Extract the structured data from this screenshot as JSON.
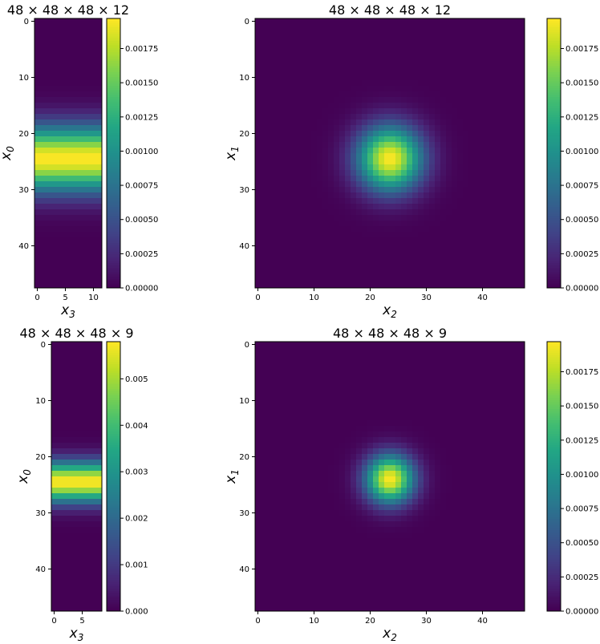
{
  "chart_data": [
    {
      "type": "heatmap",
      "title": "48 × 48 × 48 × 12",
      "xlabel": "x",
      "xlabel_sub": "3",
      "ylabel": "x",
      "ylabel_sub": "0",
      "x_ticks": [
        0,
        5,
        10
      ],
      "y_ticks": [
        0,
        10,
        20,
        30,
        40
      ],
      "xlim": [
        -0.5,
        11.5
      ],
      "ylim": [
        47.5,
        -0.5
      ],
      "grid_shape": [
        48,
        12
      ],
      "profile": "gaussian rows, uniform across columns",
      "center_row": 24.5,
      "sigma_rows": 4.0,
      "vmin": 0,
      "vmax": 0.00197,
      "colorbar_ticks": [
        "0.00000",
        "0.00025",
        "0.00050",
        "0.00075",
        "0.00100",
        "0.00125",
        "0.00150",
        "0.00175"
      ],
      "colorbar_values": [
        0,
        0.00025,
        0.0005,
        0.00075,
        0.001,
        0.00125,
        0.0015,
        0.00175
      ],
      "colormap": "viridis"
    },
    {
      "type": "heatmap",
      "title": "48 × 48 × 48 × 12",
      "xlabel": "x",
      "xlabel_sub": "2",
      "ylabel": "x",
      "ylabel_sub": "1",
      "x_ticks": [
        0,
        10,
        20,
        30,
        40
      ],
      "y_ticks": [
        0,
        10,
        20,
        30,
        40
      ],
      "xlim": [
        -0.5,
        47.5
      ],
      "ylim": [
        47.5,
        -0.5
      ],
      "grid_shape": [
        48,
        48
      ],
      "profile": "2D gaussian",
      "center": [
        24.5,
        23.5
      ],
      "sigma": 4.0,
      "vmin": 0,
      "vmax": 0.00197,
      "colorbar_ticks": [
        "0.00000",
        "0.00025",
        "0.00050",
        "0.00075",
        "0.00100",
        "0.00125",
        "0.00150",
        "0.00175"
      ],
      "colorbar_values": [
        0,
        0.00025,
        0.0005,
        0.00075,
        0.001,
        0.00125,
        0.0015,
        0.00175
      ],
      "colormap": "viridis"
    },
    {
      "type": "heatmap",
      "title": "48 × 48 × 48 × 9",
      "xlabel": "x",
      "xlabel_sub": "3",
      "ylabel": "x",
      "ylabel_sub": "0",
      "x_ticks": [
        0,
        5
      ],
      "y_ticks": [
        0,
        10,
        20,
        30,
        40
      ],
      "xlim": [
        -0.5,
        8.5
      ],
      "ylim": [
        47.5,
        -0.5
      ],
      "grid_shape": [
        48,
        9
      ],
      "profile": "gaussian rows, uniform across columns",
      "center_row": 24.5,
      "sigma_rows": 2.5,
      "vmin": 0,
      "vmax": 0.0058,
      "colorbar_ticks": [
        "0.000",
        "0.001",
        "0.002",
        "0.003",
        "0.004",
        "0.005"
      ],
      "colorbar_values": [
        0,
        0.001,
        0.002,
        0.003,
        0.004,
        0.005
      ],
      "colormap": "viridis"
    },
    {
      "type": "heatmap",
      "title": "48 × 48 × 48 × 9",
      "xlabel": "x",
      "xlabel_sub": "2",
      "ylabel": "x",
      "ylabel_sub": "1",
      "x_ticks": [
        0,
        10,
        20,
        30,
        40
      ],
      "y_ticks": [
        0,
        10,
        20,
        30,
        40
      ],
      "xlim": [
        -0.5,
        47.5
      ],
      "ylim": [
        47.5,
        -0.5
      ],
      "grid_shape": [
        48,
        48
      ],
      "profile": "2D gaussian",
      "center": [
        24.0,
        23.5
      ],
      "sigma": 3.0,
      "vmin": 0,
      "vmax": 0.00197,
      "colorbar_ticks": [
        "0.00000",
        "0.00025",
        "0.00050",
        "0.00075",
        "0.00100",
        "0.00125",
        "0.00150",
        "0.00175"
      ],
      "colorbar_values": [
        0,
        0.00025,
        0.0005,
        0.00075,
        0.001,
        0.00125,
        0.0015,
        0.00175
      ],
      "colormap": "viridis"
    }
  ]
}
